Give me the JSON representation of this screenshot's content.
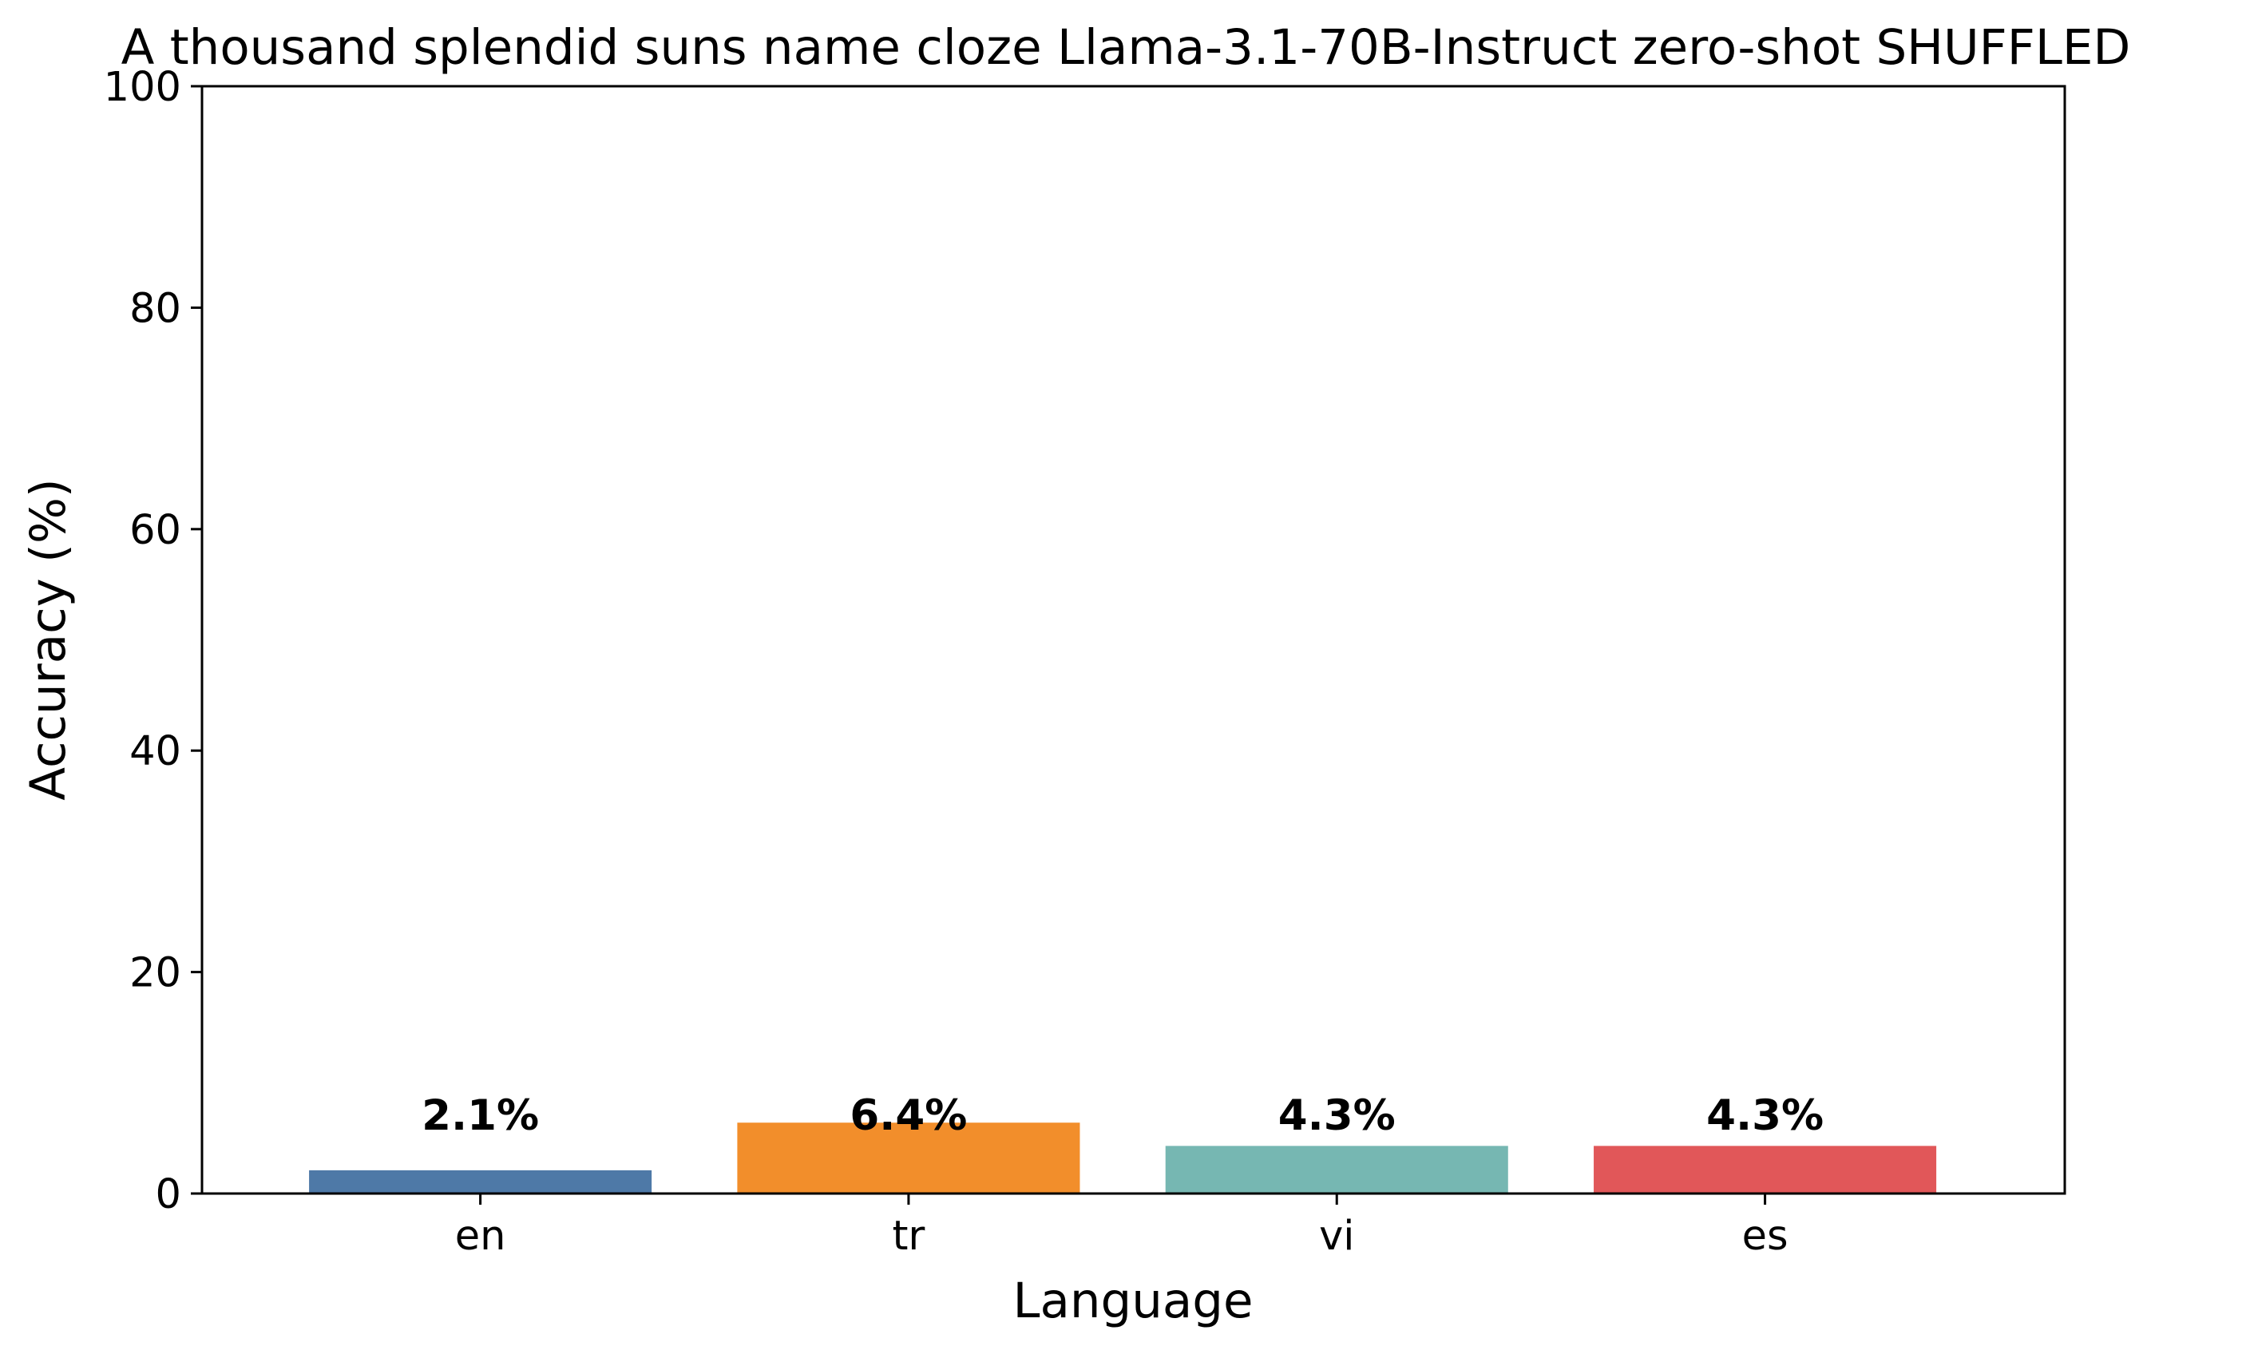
{
  "chart_data": {
    "type": "bar",
    "title": "A thousand splendid suns name cloze Llama-3.1-70B-Instruct zero-shot SHUFFLED",
    "xlabel": "Language",
    "ylabel": "Accuracy (%)",
    "categories": [
      "en",
      "tr",
      "vi",
      "es"
    ],
    "values": [
      2.1,
      6.4,
      4.3,
      4.3
    ],
    "value_labels": [
      "2.1%",
      "6.4%",
      "4.3%",
      "4.3%"
    ],
    "colors": [
      "#4e79a7",
      "#f28e2b",
      "#76b7b2",
      "#e15759"
    ],
    "ylim": [
      0,
      100
    ],
    "yticks": [
      0,
      20,
      40,
      60,
      80,
      100
    ],
    "grid": false,
    "legend": "none"
  }
}
